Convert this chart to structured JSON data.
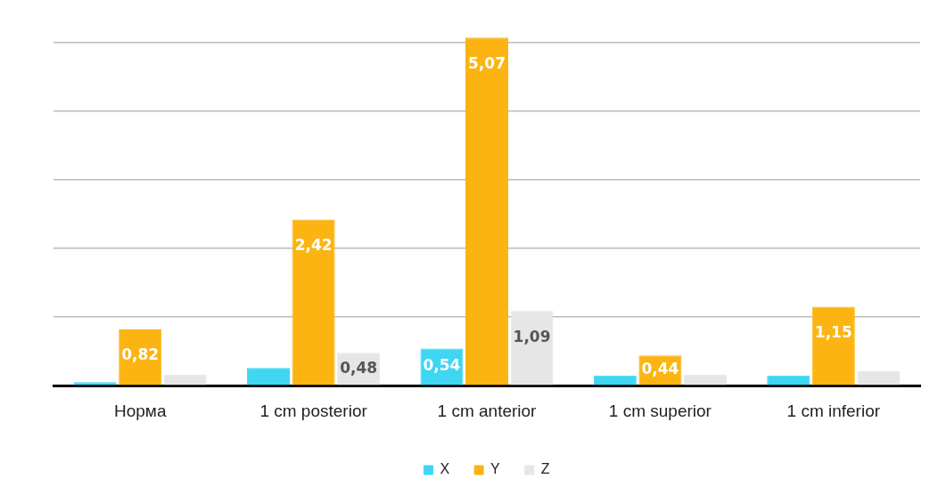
{
  "chart_data": {
    "type": "bar",
    "categories": [
      "Норма",
      "1 cm posterior",
      "1 cm anterior",
      "1 cm superior",
      "1 cm inferior"
    ],
    "series": [
      {
        "name": "X",
        "color": "#3ed6f2",
        "values": [
          0.05,
          0.26,
          0.54,
          0.15,
          0.15
        ],
        "value_labels": [
          null,
          null,
          "0,54",
          null,
          null
        ]
      },
      {
        "name": "Y",
        "color": "#fbb412",
        "values": [
          0.82,
          2.42,
          5.07,
          0.44,
          1.15
        ],
        "value_labels": [
          "0,82",
          "2,42",
          "5,07",
          "0,44",
          "1,15"
        ]
      },
      {
        "name": "Z",
        "color": "#e6e6e6",
        "values": [
          0.16,
          0.48,
          1.09,
          0.16,
          0.21
        ],
        "value_labels": [
          null,
          "0,48",
          "1,09",
          null,
          null
        ]
      }
    ],
    "ylim": [
      0,
      5.1
    ],
    "yticks": [
      {
        "value": 0,
        "label": null
      },
      {
        "value": 1,
        "label": null
      },
      {
        "value": 2,
        "label": null
      },
      {
        "value": 3,
        "label": null
      },
      {
        "value": 4,
        "label": null
      },
      {
        "value": 5,
        "label": null
      }
    ],
    "tick_labels": "x",
    "grid": "y",
    "legend": "bottom"
  }
}
